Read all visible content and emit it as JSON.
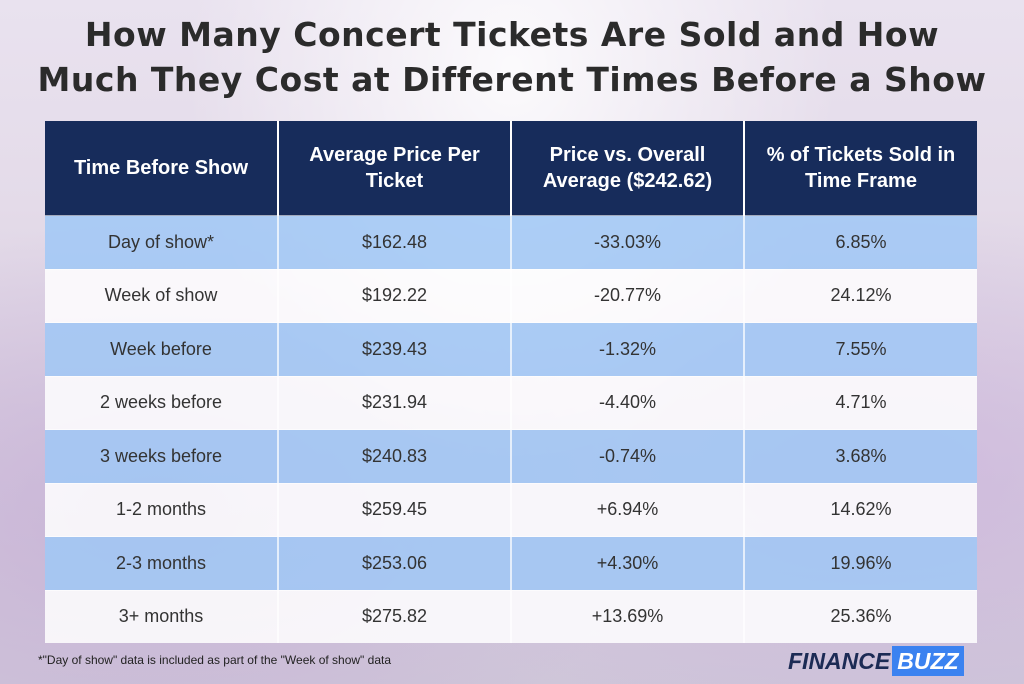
{
  "title_line1": "How Many Concert Tickets Are Sold and How",
  "title_line2": "Much They Cost at Different Times Before a Show",
  "chart_data": {
    "type": "table",
    "columns": [
      "Time Before Show",
      "Average Price Per Ticket",
      "Price vs. Overall Average ($242.62)",
      "% of Tickets Sold in Time Frame"
    ],
    "rows": [
      [
        "Day of show*",
        "$162.48",
        "-33.03%",
        "6.85%"
      ],
      [
        "Week of show",
        "$192.22",
        "-20.77%",
        "24.12%"
      ],
      [
        "Week before",
        "$239.43",
        "-1.32%",
        "7.55%"
      ],
      [
        "2 weeks before",
        "$231.94",
        "-4.40%",
        "4.71%"
      ],
      [
        "3 weeks before",
        "$240.83",
        "-0.74%",
        "3.68%"
      ],
      [
        "1-2 months",
        "$259.45",
        "+6.94%",
        "14.62%"
      ],
      [
        "2-3 months",
        "$253.06",
        "+4.30%",
        "19.96%"
      ],
      [
        "3+ months",
        "$275.82",
        "+13.69%",
        "25.36%"
      ]
    ],
    "row_colors": [
      "#a0c8f6",
      "#ffffff"
    ],
    "header_color": "#172c5b"
  },
  "footnote": "*\"Day of show\" data is included as part of the \"Week of show\" data",
  "logo": {
    "part1": "FINANCE",
    "part2": "BUZZ"
  },
  "colors": {
    "accent": "#3b82f0",
    "navy": "#172c5b"
  }
}
